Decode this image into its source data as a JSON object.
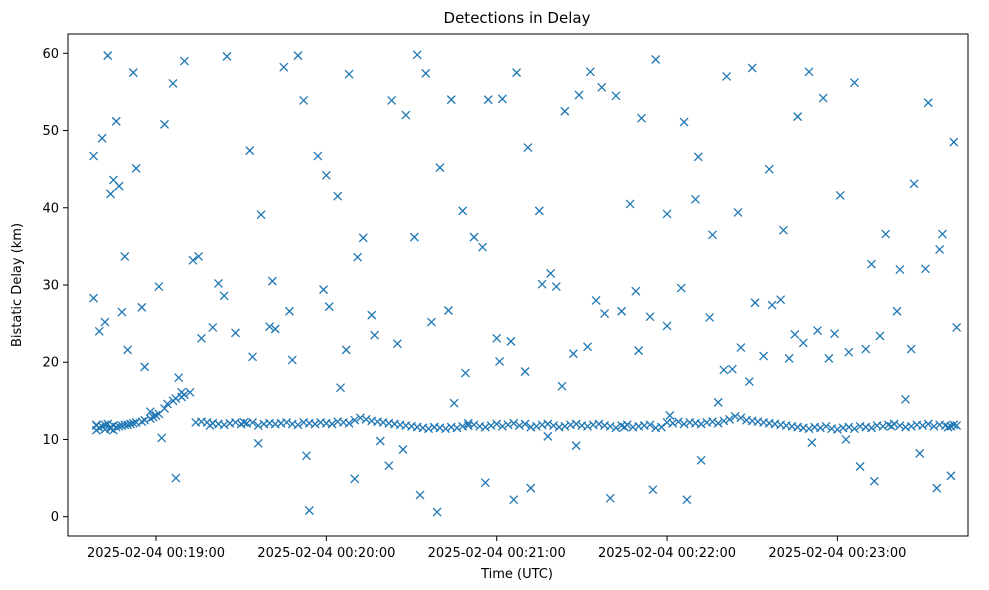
{
  "chart_data": {
    "type": "scatter",
    "title": "Detections in Delay",
    "xlabel": "Time (UTC)",
    "ylabel": "Bistatic Delay (km)",
    "x_ticks": [
      "2025-02-04 00:19:00",
      "2025-02-04 00:20:00",
      "2025-02-04 00:21:00",
      "2025-02-04 00:22:00",
      "2025-02-04 00:23:00"
    ],
    "y_ticks": [
      "0",
      "10",
      "20",
      "30",
      "40",
      "50",
      "60"
    ],
    "ylim": [
      -2.5,
      62.5
    ],
    "xlim": [
      "2025-02-04 00:18:29",
      "2025-02-04 00:23:46"
    ],
    "grid": false,
    "marker": "x",
    "color": "#1f77b4",
    "series": [
      {
        "name": "",
        "x": [
          "00:18:39",
          "00:18:39",
          "00:18:39",
          "00:18:40",
          "00:18:41",
          "00:18:42",
          "00:18:42",
          "00:18:43",
          "00:18:44",
          "00:18:44",
          "00:18:45",
          "00:18:45",
          "00:18:46",
          "00:18:47",
          "00:18:48",
          "00:18:49",
          "00:18:50",
          "00:18:51",
          "00:18:52",
          "00:18:53",
          "00:18:55",
          "00:18:56",
          "00:18:58",
          "00:18:59",
          "00:19:00",
          "00:19:01",
          "00:19:03",
          "00:19:04",
          "00:19:06",
          "00:19:07",
          "00:19:09",
          "00:19:10",
          "00:19:12",
          "00:19:14",
          "00:19:16",
          "00:19:18",
          "00:19:20",
          "00:19:22",
          "00:19:24",
          "00:19:26",
          "00:19:28",
          "00:19:30",
          "00:19:32",
          "00:19:34",
          "00:19:36",
          "00:19:38",
          "00:19:40",
          "00:19:42",
          "00:19:44",
          "00:19:46",
          "00:19:48",
          "00:19:50",
          "00:19:52",
          "00:19:54",
          "00:19:56",
          "00:19:58",
          "00:20:00",
          "00:20:02",
          "00:20:04",
          "00:20:06",
          "00:20:08",
          "00:20:10",
          "00:20:12",
          "00:20:14",
          "00:20:16",
          "00:20:18",
          "00:20:20",
          "00:20:22",
          "00:20:24",
          "00:20:26",
          "00:20:28",
          "00:20:30",
          "00:20:32",
          "00:20:34",
          "00:20:36",
          "00:20:38",
          "00:20:40",
          "00:20:42",
          "00:20:44",
          "00:20:46",
          "00:20:48",
          "00:20:50",
          "00:20:52",
          "00:20:54",
          "00:20:56",
          "00:20:58",
          "00:21:00",
          "00:21:02",
          "00:21:04",
          "00:21:06",
          "00:21:08",
          "00:21:10",
          "00:21:12",
          "00:21:14",
          "00:21:16",
          "00:21:18",
          "00:21:20",
          "00:21:22",
          "00:21:24",
          "00:21:26",
          "00:21:28",
          "00:21:30",
          "00:21:32",
          "00:21:34",
          "00:21:36",
          "00:21:38",
          "00:21:40",
          "00:21:42",
          "00:21:44",
          "00:21:46",
          "00:21:48",
          "00:21:50",
          "00:21:52",
          "00:21:54",
          "00:21:56",
          "00:21:58",
          "00:22:00",
          "00:22:02",
          "00:22:04",
          "00:22:06",
          "00:22:08",
          "00:22:10",
          "00:22:12",
          "00:22:14",
          "00:22:16",
          "00:22:18",
          "00:22:20",
          "00:22:22",
          "00:22:24",
          "00:22:26",
          "00:22:28",
          "00:22:30",
          "00:22:32",
          "00:22:34",
          "00:22:36",
          "00:22:38",
          "00:22:40",
          "00:22:42",
          "00:22:44",
          "00:22:46",
          "00:22:48",
          "00:22:50",
          "00:22:52",
          "00:22:54",
          "00:22:56",
          "00:22:58",
          "00:23:00",
          "00:23:02",
          "00:23:04",
          "00:23:06",
          "00:23:08",
          "00:23:10",
          "00:23:12",
          "00:23:14",
          "00:23:16",
          "00:23:18",
          "00:23:20",
          "00:23:22",
          "00:23:24",
          "00:23:26",
          "00:23:28",
          "00:23:30",
          "00:23:32",
          "00:23:34",
          "00:23:36",
          "00:23:38",
          "00:23:39",
          "00:23:40",
          "00:23:41",
          "00:23:42",
          "00:18:38",
          "00:18:38",
          "00:18:41",
          "00:18:43",
          "00:18:46",
          "00:18:47",
          "00:18:49",
          "00:18:53",
          "00:18:55",
          "00:19:03",
          "00:19:06",
          "00:19:08",
          "00:19:10",
          "00:19:15",
          "00:19:20",
          "00:19:25",
          "00:19:33",
          "00:19:37",
          "00:19:40",
          "00:19:45",
          "00:19:50",
          "00:19:52",
          "00:19:57",
          "00:20:00",
          "00:20:04",
          "00:20:08",
          "00:20:11",
          "00:20:17",
          "00:20:23",
          "00:20:28",
          "00:20:32",
          "00:20:35",
          "00:20:40",
          "00:20:44",
          "00:20:48",
          "00:20:52",
          "00:20:57",
          "00:21:02",
          "00:21:07",
          "00:21:11",
          "00:21:15",
          "00:21:19",
          "00:21:24",
          "00:21:29",
          "00:21:33",
          "00:21:37",
          "00:21:42",
          "00:21:47",
          "00:21:51",
          "00:21:56",
          "00:22:00",
          "00:22:06",
          "00:22:11",
          "00:22:16",
          "00:22:21",
          "00:22:25",
          "00:22:30",
          "00:22:36",
          "00:22:41",
          "00:22:46",
          "00:22:50",
          "00:22:55",
          "00:23:01",
          "00:23:06",
          "00:23:12",
          "00:23:17",
          "00:23:22",
          "00:23:27",
          "00:23:32",
          "00:23:37",
          "00:23:41",
          "00:18:42",
          "00:18:45",
          "00:18:48",
          "00:18:52",
          "00:18:58",
          "00:19:02",
          "00:19:07",
          "00:19:13",
          "00:19:19",
          "00:19:24",
          "00:19:31",
          "00:19:36",
          "00:19:42",
          "00:19:48",
          "00:19:54",
          "00:19:59",
          "00:20:05",
          "00:20:10",
          "00:20:16",
          "00:20:22",
          "00:20:27",
          "00:20:33",
          "00:20:39",
          "00:20:45",
          "00:20:50",
          "00:20:56",
          "00:21:01",
          "00:21:06",
          "00:21:12",
          "00:21:18",
          "00:21:23",
          "00:21:28",
          "00:21:35",
          "00:21:40",
          "00:21:45",
          "00:21:50",
          "00:21:55",
          "00:22:01",
          "00:22:07",
          "00:22:12",
          "00:22:18",
          "00:22:23",
          "00:22:29",
          "00:22:34",
          "00:22:40",
          "00:22:45",
          "00:22:51",
          "00:22:57",
          "00:23:03",
          "00:23:08",
          "00:23:13",
          "00:23:19",
          "00:23:24",
          "00:23:29",
          "00:23:35",
          "00:23:40",
          "00:18:40",
          "00:18:44",
          "00:18:50",
          "00:18:56",
          "00:19:01",
          "00:19:09",
          "00:19:16",
          "00:19:22",
          "00:19:28",
          "00:19:34",
          "00:19:41",
          "00:19:47",
          "00:19:53",
          "00:20:01",
          "00:20:07",
          "00:20:13",
          "00:20:19",
          "00:20:25",
          "00:20:31",
          "00:20:37",
          "00:20:43",
          "00:20:49",
          "00:20:55",
          "00:21:00",
          "00:21:05",
          "00:21:10",
          "00:21:16",
          "00:21:21",
          "00:21:27",
          "00:21:32",
          "00:21:38",
          "00:21:44",
          "00:21:49",
          "00:21:54",
          "00:22:00",
          "00:22:05",
          "00:22:10",
          "00:22:15",
          "00:22:20",
          "00:22:26",
          "00:22:31",
          "00:22:37",
          "00:22:43",
          "00:22:48",
          "00:22:53",
          "00:22:59",
          "00:23:04",
          "00:23:10",
          "00:23:15",
          "00:23:21",
          "00:23:26",
          "00:23:31",
          "00:23:36",
          "00:23:42"
        ],
        "y": [
          11.8,
          11.2,
          11.9,
          11.5,
          11.7,
          11.3,
          11.9,
          12.0,
          11.6,
          11.4,
          11.8,
          11.2,
          11.6,
          11.7,
          11.8,
          11.9,
          11.9,
          12.0,
          12.1,
          12.2,
          12.3,
          12.5,
          12.7,
          12.9,
          13.1,
          13.3,
          14.0,
          14.6,
          15.0,
          15.3,
          15.5,
          15.8,
          16.1,
          12.2,
          12.3,
          12.2,
          12.1,
          12.0,
          11.9,
          12.1,
          12.2,
          12.0,
          12.1,
          12.2,
          11.8,
          12.0,
          12.1,
          12.0,
          12.1,
          12.2,
          12.0,
          11.9,
          12.2,
          12.1,
          12.0,
          12.2,
          12.1,
          12.0,
          12.3,
          12.2,
          12.1,
          12.5,
          12.8,
          12.6,
          12.4,
          12.3,
          12.2,
          12.1,
          12.0,
          11.9,
          11.8,
          11.7,
          11.6,
          11.5,
          11.4,
          11.6,
          11.5,
          11.4,
          11.6,
          11.5,
          11.7,
          11.8,
          11.9,
          11.7,
          11.6,
          11.8,
          12.0,
          11.7,
          11.9,
          12.1,
          11.8,
          12.0,
          11.6,
          11.7,
          11.9,
          12.0,
          11.8,
          11.6,
          11.7,
          11.9,
          12.0,
          11.8,
          11.7,
          11.9,
          12.0,
          11.8,
          11.7,
          11.5,
          11.8,
          11.9,
          11.6,
          11.7,
          11.8,
          11.9,
          11.5,
          11.6,
          12.2,
          12.1,
          12.3,
          12.0,
          12.2,
          12.1,
          12.0,
          12.2,
          12.3,
          12.1,
          12.4,
          12.6,
          13.0,
          12.8,
          12.5,
          12.4,
          12.3,
          12.2,
          12.1,
          12.0,
          11.9,
          11.8,
          11.7,
          11.6,
          11.5,
          11.4,
          11.6,
          11.5,
          11.7,
          11.4,
          11.3,
          11.5,
          11.6,
          11.4,
          11.7,
          11.6,
          11.5,
          11.8,
          11.7,
          11.9,
          12.0,
          11.8,
          11.6,
          11.7,
          11.9,
          11.8,
          12.0,
          11.7,
          11.9,
          11.8,
          11.6,
          11.7,
          11.9,
          11.8,
          46.7,
          28.3,
          49.0,
          59.7,
          51.2,
          42.8,
          33.7,
          45.1,
          27.1,
          50.8,
          56.1,
          18.0,
          59.0,
          33.7,
          24.5,
          59.6,
          47.4,
          39.1,
          24.6,
          58.2,
          59.7,
          53.9,
          46.7,
          44.2,
          41.5,
          57.3,
          33.6,
          23.5,
          53.9,
          52.0,
          59.8,
          57.4,
          45.2,
          54.0,
          39.6,
          36.2,
          54.0,
          54.1,
          57.5,
          47.8,
          39.6,
          31.5,
          52.5,
          54.6,
          57.6,
          55.6,
          54.5,
          40.5,
          51.6,
          59.2,
          39.2,
          51.1,
          46.6,
          36.5,
          57.0,
          39.4,
          58.1,
          45.0,
          37.1,
          51.8,
          57.6,
          54.2,
          41.6,
          56.2,
          32.7,
          36.6,
          32.0,
          43.1,
          53.6,
          36.6,
          48.5,
          25.2,
          43.6,
          26.5,
          57.5,
          13.6,
          10.2,
          5.0,
          33.2,
          11.8,
          28.6,
          12.2,
          9.5,
          24.3,
          20.3,
          0.8,
          29.4,
          16.7,
          4.9,
          26.1,
          6.6,
          8.7,
          2.8,
          0.6,
          14.7,
          12.1,
          4.4,
          20.1,
          2.2,
          3.7,
          10.4,
          16.9,
          9.2,
          28.0,
          2.4,
          11.6,
          21.5,
          3.5,
          13.1,
          2.2,
          7.3,
          14.8,
          19.1,
          17.5,
          20.8,
          28.1,
          23.6,
          9.6,
          20.5,
          10.0,
          6.5,
          4.6,
          11.7,
          15.2,
          8.2,
          3.7,
          5.3,
          24.0,
          41.8,
          21.6,
          19.4,
          29.8,
          16.1,
          23.1,
          30.2,
          23.8,
          20.7,
          30.5,
          26.6,
          7.9,
          27.2,
          21.6,
          36.1,
          9.8,
          22.4,
          36.2,
          25.2,
          26.7,
          18.6,
          34.9,
          23.1,
          22.7,
          18.8,
          30.1,
          29.8,
          21.1,
          22.0,
          26.3,
          26.6,
          29.2,
          25.9,
          24.7,
          29.6,
          41.1,
          25.8,
          19.0,
          21.9,
          27.7,
          27.4,
          20.5,
          22.5,
          24.1,
          23.7,
          21.3,
          21.7,
          23.4,
          26.6,
          21.7,
          32.1,
          34.6,
          24.5
        ]
      }
    ]
  }
}
